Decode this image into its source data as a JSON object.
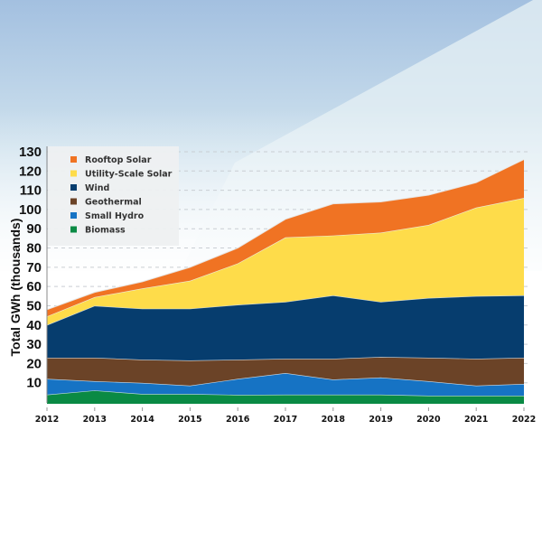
{
  "chart_data": {
    "type": "area",
    "stacked": true,
    "title": "",
    "xlabel": "",
    "ylabel": "Total GWh (thousands)",
    "x": [
      "2012",
      "2013",
      "2014",
      "2015",
      "2016",
      "2017",
      "2018",
      "2019",
      "2020",
      "2021",
      "2022"
    ],
    "ylim": [
      0,
      130
    ],
    "yticks": [
      10,
      20,
      30,
      40,
      50,
      60,
      70,
      80,
      90,
      100,
      110,
      120,
      130
    ],
    "grid": true,
    "legend_position": "top-left",
    "series": [
      {
        "name": "Biomass",
        "color": "#0a8a44",
        "values": [
          3.8,
          6.0,
          4.2,
          4.2,
          3.7,
          3.8,
          3.8,
          3.8,
          3.3,
          3.3,
          3.3
        ]
      },
      {
        "name": "Small Hydro",
        "color": "#1673c4",
        "values": [
          8.2,
          4.8,
          5.7,
          4.3,
          8.3,
          11.2,
          7.9,
          8.9,
          7.5,
          5.2,
          6.1
        ]
      },
      {
        "name": "Geothermal",
        "color": "#6b4327",
        "values": [
          11.0,
          12.2,
          12.1,
          13.1,
          10.0,
          7.5,
          10.8,
          10.7,
          12.2,
          14.0,
          13.6
        ]
      },
      {
        "name": "Wind",
        "color": "#063d6e",
        "values": [
          17.0,
          27.0,
          26.5,
          26.9,
          28.5,
          29.5,
          32.9,
          28.6,
          31.0,
          32.5,
          32.4
        ]
      },
      {
        "name": "Utility-Scale Solar",
        "color": "#fedc4a",
        "values": [
          4.5,
          4.5,
          10.5,
          14.5,
          21.5,
          33.5,
          31.1,
          36.0,
          38.0,
          46.0,
          50.6
        ]
      },
      {
        "name": "Rooftop Solar",
        "color": "#f07323",
        "values": [
          3.5,
          2.5,
          3.5,
          7.0,
          8.0,
          9.5,
          16.5,
          16.0,
          15.5,
          13.0,
          20.0
        ]
      }
    ],
    "legend_order": [
      "Rooftop Solar",
      "Utility-Scale Solar",
      "Wind",
      "Geothermal",
      "Small Hydro",
      "Biomass"
    ]
  }
}
